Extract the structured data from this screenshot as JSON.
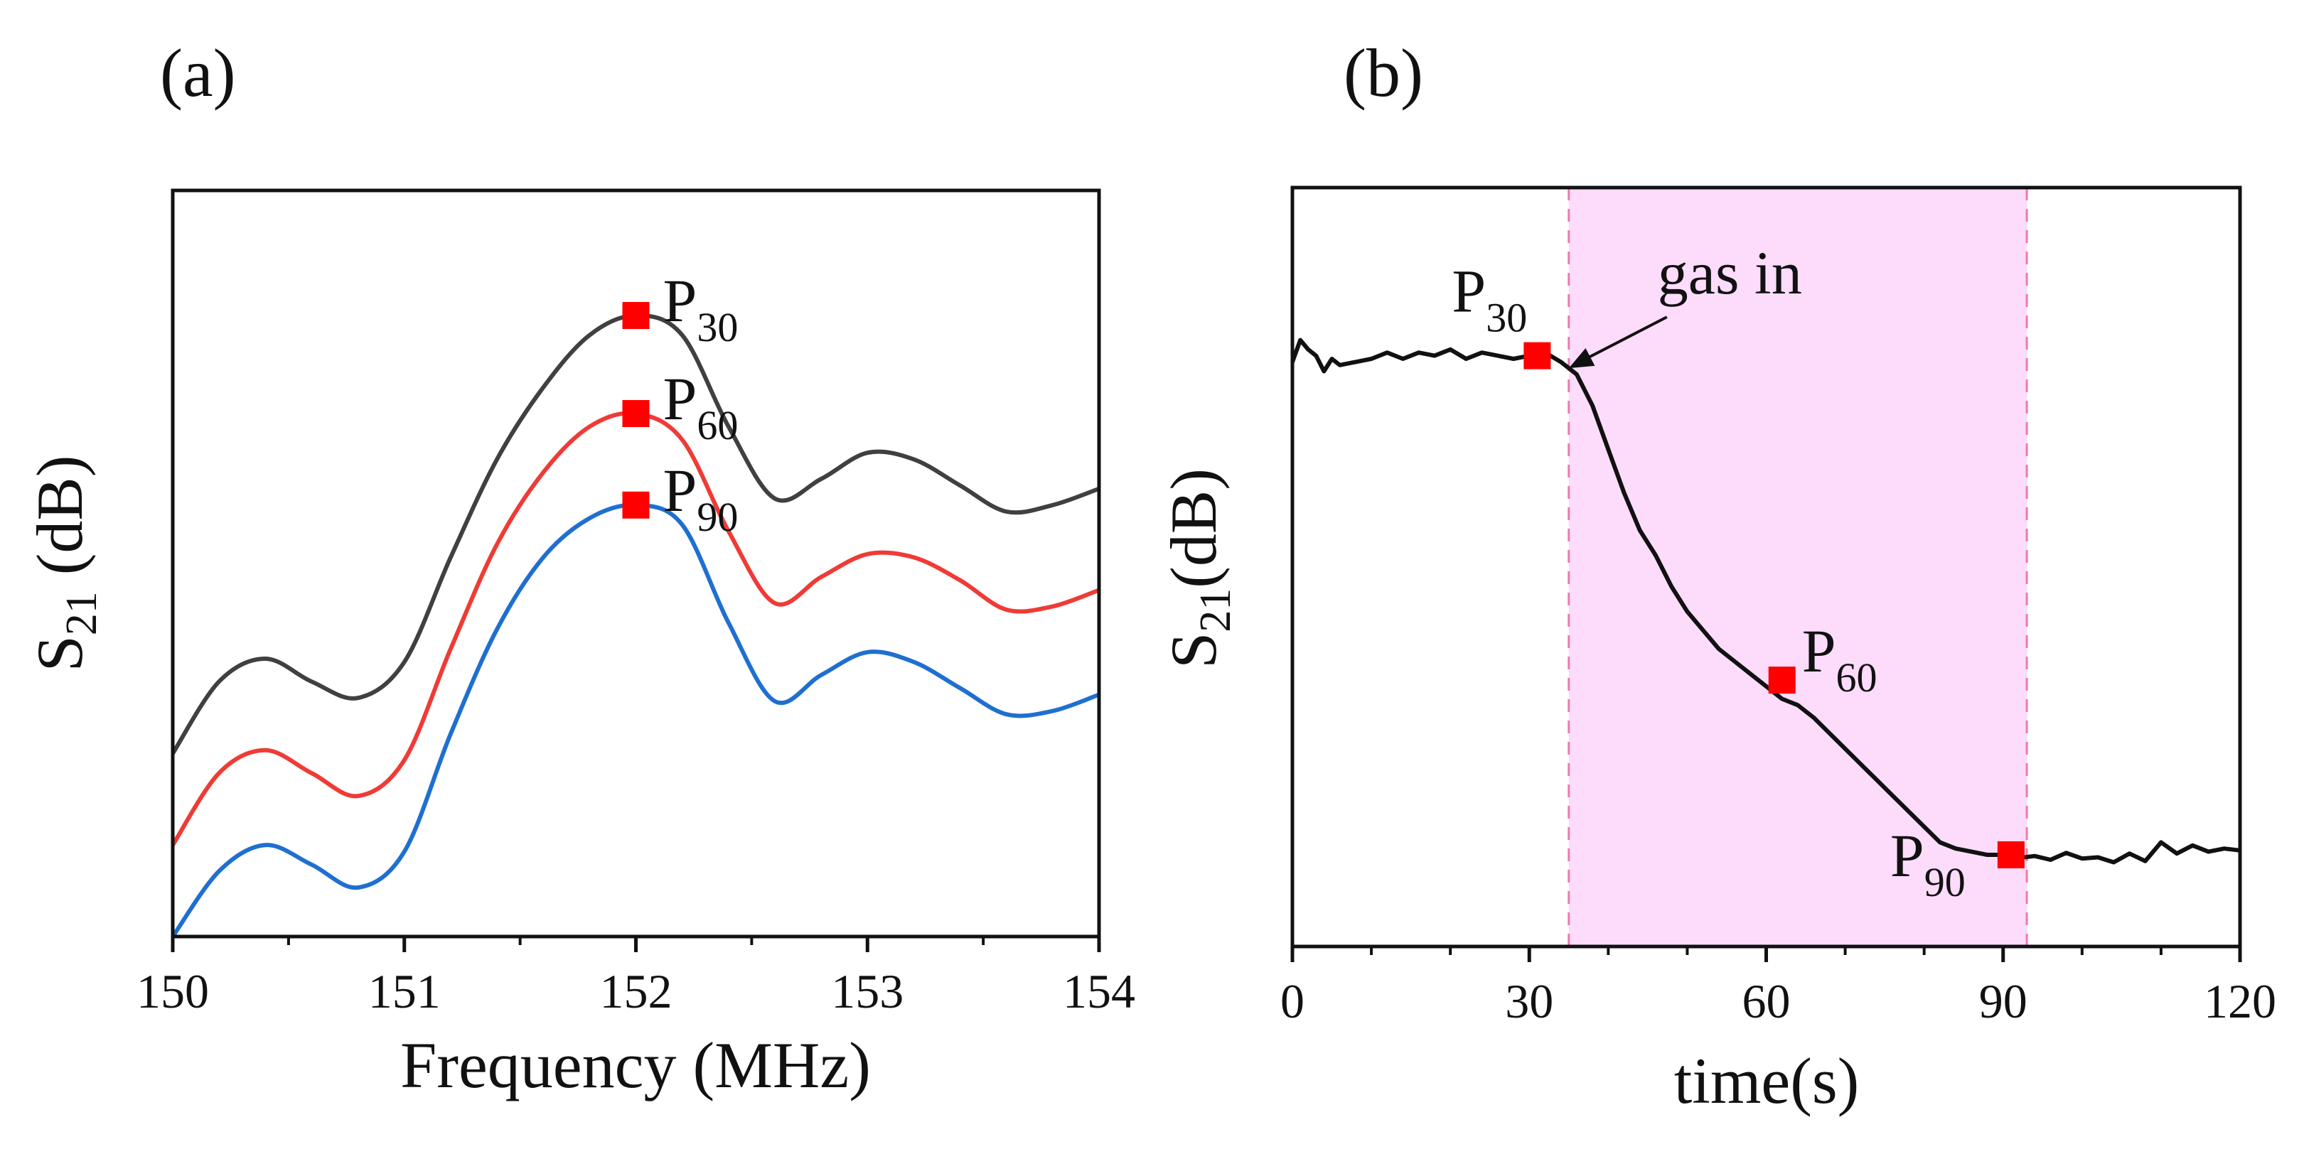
{
  "chart_data": [
    {
      "panel_label": "(a)",
      "type": "line",
      "xlabel": "Frequency (MHz)",
      "ylabel": {
        "main": "S",
        "sub": "21",
        "rest": " (dB)"
      },
      "xlim": [
        150,
        154
      ],
      "ylim": [
        0,
        100
      ],
      "y_ticks_shown": false,
      "x_ticks": [
        "150",
        "151",
        "152",
        "153",
        "154"
      ],
      "x": [
        150.0,
        150.2,
        150.4,
        150.6,
        150.8,
        151.0,
        151.2,
        151.4,
        151.6,
        151.8,
        152.0,
        152.2,
        152.4,
        152.6,
        152.8,
        153.0,
        153.2,
        153.4,
        153.6,
        153.8,
        154.0
      ],
      "series": [
        {
          "name": "P30 spectrum",
          "color": "#404040",
          "values": [
            28,
            39,
            42.5,
            39,
            36.5,
            42,
            58,
            73,
            84,
            92,
            95,
            92,
            78,
            67,
            70,
            74,
            73,
            69,
            65,
            66,
            68.5
          ]
        },
        {
          "name": "P60 spectrum",
          "color": "#ef3b36",
          "values": [
            14,
            25,
            28.5,
            25,
            21.5,
            27,
            44,
            60,
            71,
            78,
            80,
            76,
            62,
            51,
            55,
            58.5,
            58,
            54.5,
            50,
            50.5,
            53
          ]
        },
        {
          "name": "P90 spectrum",
          "color": "#1f6fd1",
          "values": [
            0,
            10,
            14,
            11,
            7.5,
            13,
            31,
            47,
            58,
            64,
            66,
            63,
            48,
            36,
            40,
            43.5,
            42,
            38,
            34,
            34.5,
            37
          ]
        }
      ],
      "markers": [
        {
          "name": "P",
          "sub": "30",
          "x": 152.0,
          "y": 95
        },
        {
          "name": "P",
          "sub": "60",
          "x": 152.0,
          "y": 80
        },
        {
          "name": "P",
          "sub": "90",
          "x": 152.0,
          "y": 66
        }
      ]
    },
    {
      "panel_label": "(b)",
      "type": "line",
      "xlabel": "time(s)",
      "ylabel": {
        "main": "S",
        "sub": "21",
        "rest": "(dB)"
      },
      "xlim": [
        0,
        120
      ],
      "ylim": [
        0,
        100
      ],
      "y_ticks_shown": false,
      "x_ticks": [
        "0",
        "30",
        "60",
        "90",
        "120"
      ],
      "x": [
        0,
        1,
        2,
        3,
        4,
        5,
        6,
        8,
        10,
        12,
        14,
        16,
        18,
        20,
        22,
        24,
        26,
        28,
        30,
        32,
        34,
        36,
        38,
        40,
        42,
        44,
        46,
        48,
        50,
        52,
        54,
        56,
        58,
        60,
        62,
        64,
        66,
        68,
        70,
        72,
        74,
        76,
        78,
        80,
        82,
        84,
        86,
        88,
        90,
        92,
        94,
        96,
        98,
        100,
        102,
        104,
        106,
        108,
        110,
        112,
        114,
        116,
        118,
        120
      ],
      "series": [
        {
          "name": "S21 vs time",
          "color": "#111111",
          "values": [
            88,
            91.5,
            90,
            89,
            86.5,
            88.5,
            87.5,
            88,
            88.5,
            89.5,
            88.5,
            89.5,
            89,
            90,
            88.5,
            89.5,
            89,
            88.5,
            89,
            89.5,
            88,
            86,
            81,
            74,
            67,
            61,
            57,
            52,
            48,
            45,
            42,
            40,
            38,
            36,
            34,
            33,
            31,
            28.5,
            26,
            23.5,
            21,
            18.5,
            16,
            13.5,
            11,
            10,
            9.5,
            9,
            9,
            8.5,
            8.8,
            8.2,
            9.3,
            8.4,
            8.6,
            7.8,
            9.2,
            8,
            11,
            9.2,
            10.5,
            9.5,
            10,
            9.7
          ]
        }
      ],
      "shaded_region": {
        "x_start": 35,
        "x_end": 93,
        "color": "#fcdcfa"
      },
      "markers": [
        {
          "name": "P",
          "sub": "30",
          "x": 31,
          "y": 89
        },
        {
          "name": "P",
          "sub": "60",
          "x": 62,
          "y": 37
        },
        {
          "name": "P",
          "sub": "90",
          "x": 91,
          "y": 9
        }
      ],
      "annotation": {
        "text": "gas in",
        "x": 35,
        "y": 87
      }
    }
  ]
}
